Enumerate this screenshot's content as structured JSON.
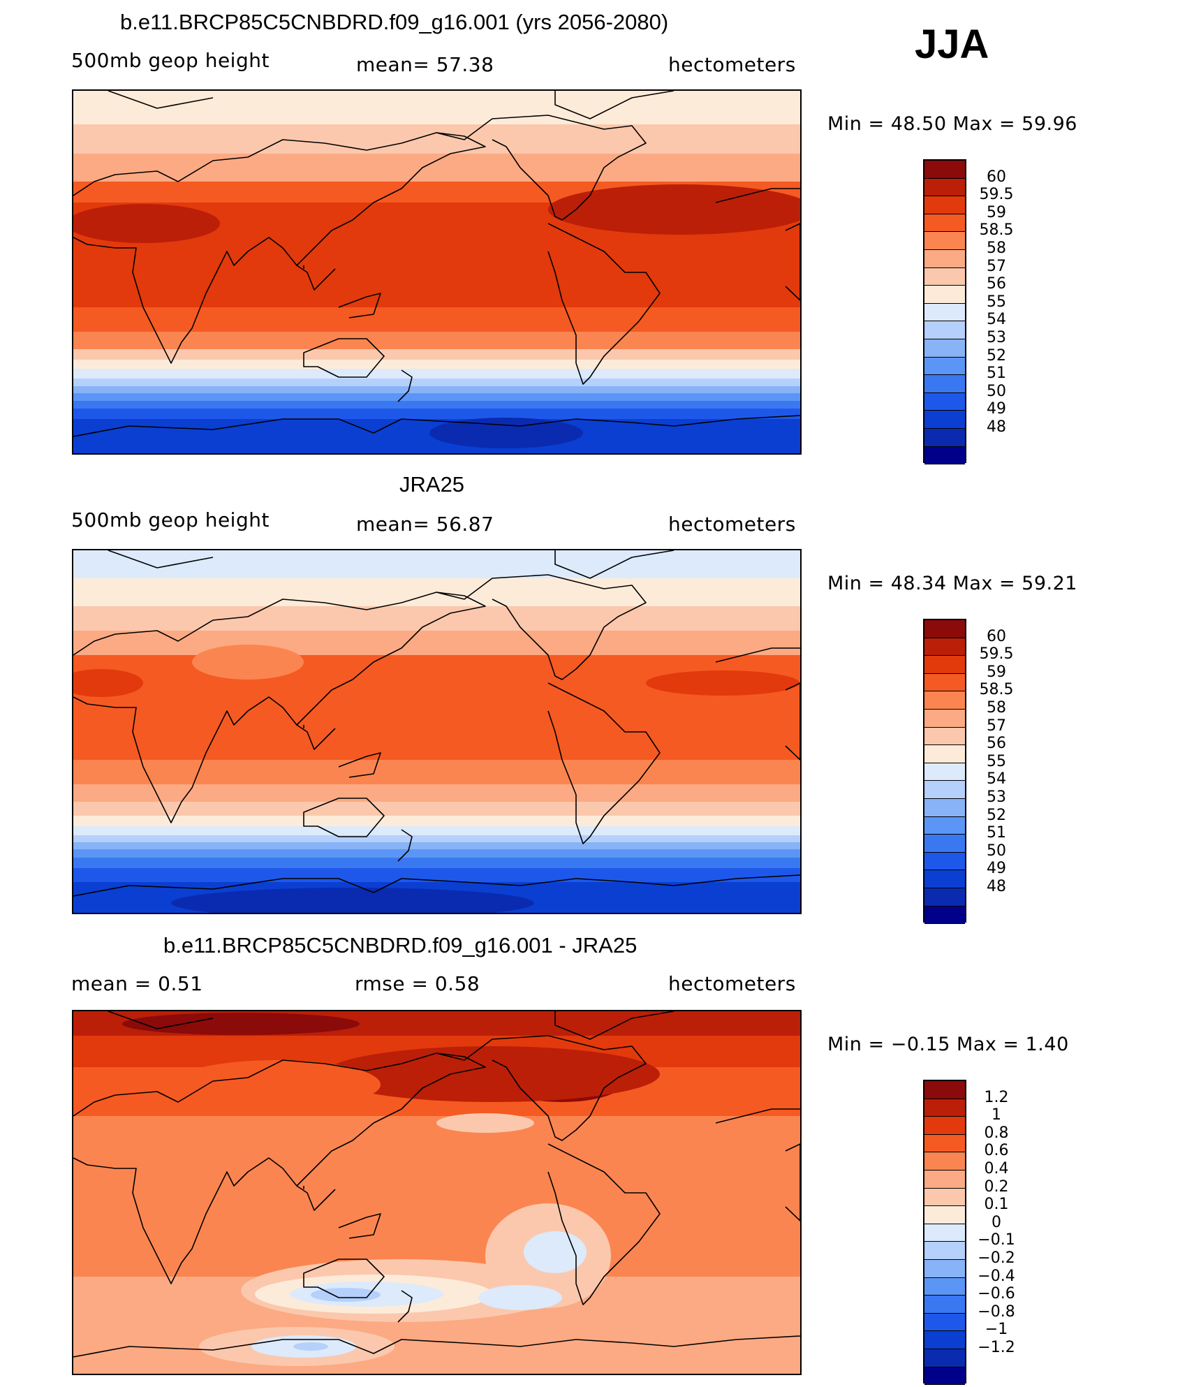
{
  "season": "JJA",
  "colors": {
    "main": [
      "#00008b",
      "#0a2bb0",
      "#0a3fd2",
      "#1e58ea",
      "#3a78f2",
      "#5b96f6",
      "#88b3f7",
      "#b5d0fa",
      "#dceafb",
      "#fdebd9",
      "#fbc8ad",
      "#fbaa84",
      "#fb8550",
      "#f55a22",
      "#e23a0c",
      "#bb1f08",
      "#8b0a0a"
    ],
    "diff": [
      "#00008b",
      "#0a2bb0",
      "#0a3fd2",
      "#1e58ea",
      "#3a78f2",
      "#5b96f6",
      "#88b3f7",
      "#b5d0fa",
      "#dceafb",
      "#fdebd9",
      "#fbc8ad",
      "#fbaa84",
      "#fb8550",
      "#f55a22",
      "#e23a0c",
      "#bb1f08",
      "#8b0a0a"
    ],
    "coast": "#000000"
  },
  "panels": [
    {
      "title": "b.e11.BRCP85C5CNBDRD.f09_g16.001 (yrs 2056-2080)",
      "left_label": "500mb geop height",
      "center_label": "mean=   57.38",
      "right_label": "hectometers",
      "minmax": "Min =   48.50  Max =   59.96",
      "colorbar": "main",
      "bar_labels": [
        "60",
        "59.5",
        "59",
        "58.5",
        "58",
        "57",
        "56",
        "55",
        "54",
        "53",
        "52",
        "51",
        "50",
        "49",
        "48"
      ],
      "field": "model"
    },
    {
      "title": "JRA25",
      "left_label": "500mb geop height",
      "center_label": "mean=   56.87",
      "right_label": "hectometers",
      "minmax": "Min =   48.34  Max =   59.21",
      "colorbar": "main",
      "bar_labels": [
        "60",
        "59.5",
        "59",
        "58.5",
        "58",
        "57",
        "56",
        "55",
        "54",
        "53",
        "52",
        "51",
        "50",
        "49",
        "48"
      ],
      "field": "obs"
    },
    {
      "title": "b.e11.BRCP85C5CNBDRD.f09_g16.001 - JRA25",
      "left_label": "mean =     0.51",
      "center_label": "rmse =     0.58",
      "right_label": "hectometers",
      "minmax": "Min =   −0.15  Max =     1.40",
      "colorbar": "diff",
      "bar_labels": [
        "1.2",
        "1",
        "0.8",
        "0.6",
        "0.4",
        "0.2",
        "0.1",
        "0",
        "−0.1",
        "−0.2",
        "−0.4",
        "−0.6",
        "−0.8",
        "−1",
        "−1.2"
      ],
      "field": "diff"
    }
  ]
}
